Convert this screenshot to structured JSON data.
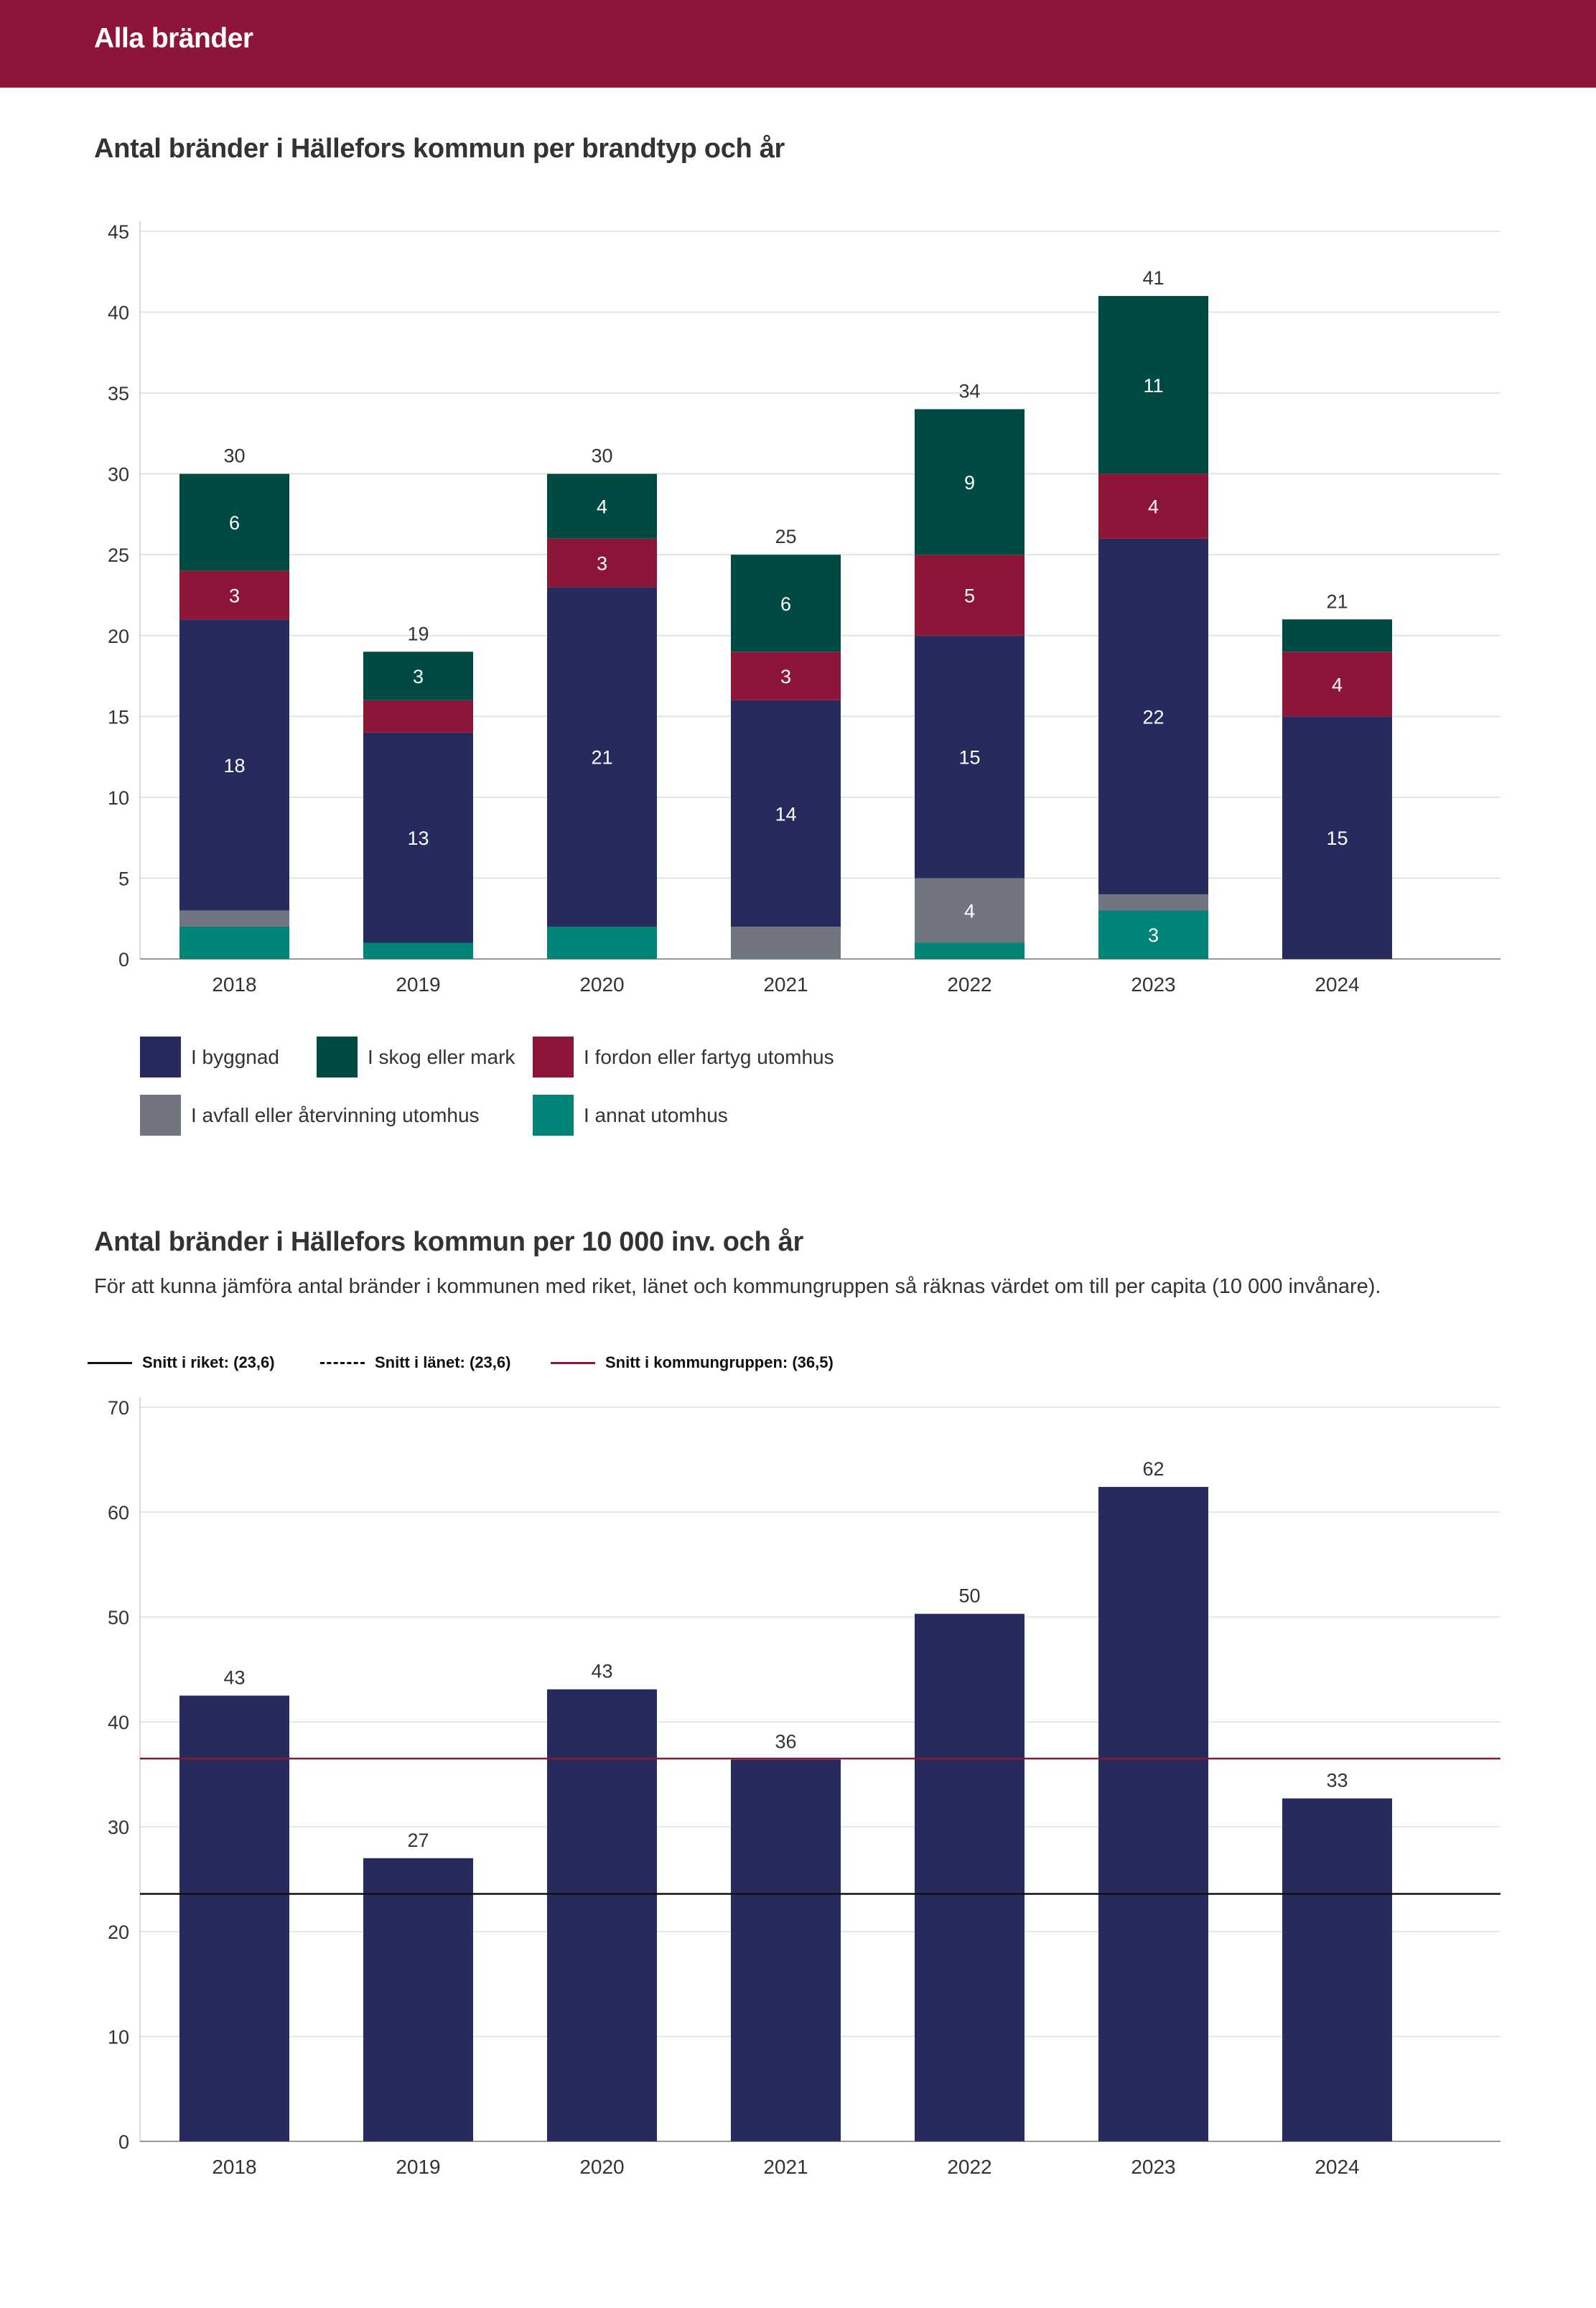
{
  "header": {
    "title": "Alla bränder"
  },
  "section1": {
    "title": "Antal bränder i Hällefors kommun per brandtyp och år"
  },
  "section2": {
    "title": "Antal bränder i Hällefors kommun per 10 000 inv. och år",
    "subtitle": "För att kunna jämföra antal bränder i kommunen med riket, länet och kommungruppen så räknas värdet om till per capita (10 000 invånare)."
  },
  "legend1": [
    {
      "label": "I byggnad",
      "color": "#262a5c"
    },
    {
      "label": "I skog eller mark",
      "color": "#004a44"
    },
    {
      "label": "I fordon eller fartyg utomhus",
      "color": "#8c1538"
    },
    {
      "label": "I avfall eller återvinning utomhus",
      "color": "#717580"
    },
    {
      "label": "I annat utomhus",
      "color": "#008478"
    }
  ],
  "legend2": [
    {
      "label": "Snitt i riket: (23,6)",
      "style": "solid",
      "color": "#111111"
    },
    {
      "label": "Snitt i länet: (23,6)",
      "style": "dashed",
      "color": "#111111"
    },
    {
      "label": "Snitt i kommungruppen: (36,5)",
      "style": "solid",
      "color": "#8c1538"
    }
  ],
  "chart_data": [
    {
      "type": "bar",
      "stacked": true,
      "title": "Antal bränder i Hällefors kommun per brandtyp och år",
      "categories": [
        "2018",
        "2019",
        "2020",
        "2021",
        "2022",
        "2023",
        "2024"
      ],
      "ylim": [
        0,
        45
      ],
      "yticks": [
        0,
        5,
        10,
        15,
        20,
        25,
        30,
        35,
        40,
        45
      ],
      "grid": true,
      "totals": [
        30,
        19,
        30,
        25,
        34,
        41,
        21
      ],
      "series": [
        {
          "name": "I annat utomhus",
          "color": "#008478",
          "values": [
            2,
            1,
            2,
            0,
            1,
            3,
            0
          ],
          "labels": [
            "",
            "",
            "",
            "",
            "",
            "3",
            ""
          ]
        },
        {
          "name": "I avfall eller återvinning utomhus",
          "color": "#717580",
          "values": [
            1,
            0,
            0,
            2,
            4,
            1,
            0
          ],
          "labels": [
            "",
            "",
            "",
            "",
            "4",
            "",
            ""
          ]
        },
        {
          "name": "I byggnad",
          "color": "#262a5c",
          "values": [
            18,
            13,
            21,
            14,
            15,
            22,
            15
          ],
          "labels": [
            "18",
            "13",
            "21",
            "14",
            "15",
            "22",
            "15"
          ]
        },
        {
          "name": "I fordon eller fartyg utomhus",
          "color": "#8c1538",
          "values": [
            3,
            2,
            3,
            3,
            5,
            4,
            4
          ],
          "labels": [
            "3",
            "",
            "3",
            "3",
            "5",
            "4",
            "4"
          ]
        },
        {
          "name": "I skog eller mark",
          "color": "#004a44",
          "values": [
            6,
            3,
            4,
            6,
            9,
            11,
            2
          ],
          "labels": [
            "6",
            "3",
            "4",
            "6",
            "9",
            "11",
            ""
          ]
        }
      ],
      "legend": "bottom-left"
    },
    {
      "type": "bar",
      "title": "Antal bränder i Hällefors kommun per 10 000 inv. och år",
      "categories": [
        "2018",
        "2019",
        "2020",
        "2021",
        "2022",
        "2023",
        "2024"
      ],
      "values": [
        42.5,
        27.0,
        43.1,
        36.4,
        50.3,
        62.4,
        32.7
      ],
      "labels": [
        "43",
        "27",
        "43",
        "36",
        "50",
        "62",
        "33"
      ],
      "color": "#262a5c",
      "ylim": [
        0,
        70
      ],
      "yticks": [
        0,
        10,
        20,
        30,
        40,
        50,
        60,
        70
      ],
      "grid": true,
      "reference_lines": [
        {
          "name": "Snitt i riket",
          "value": 23.6,
          "color": "#111111",
          "style": "solid"
        },
        {
          "name": "Snitt i länet",
          "value": 23.6,
          "color": "#111111",
          "style": "dashed"
        },
        {
          "name": "Snitt i kommungruppen",
          "value": 36.5,
          "color": "#8c1538",
          "style": "solid"
        }
      ],
      "legend": "top-left"
    }
  ]
}
